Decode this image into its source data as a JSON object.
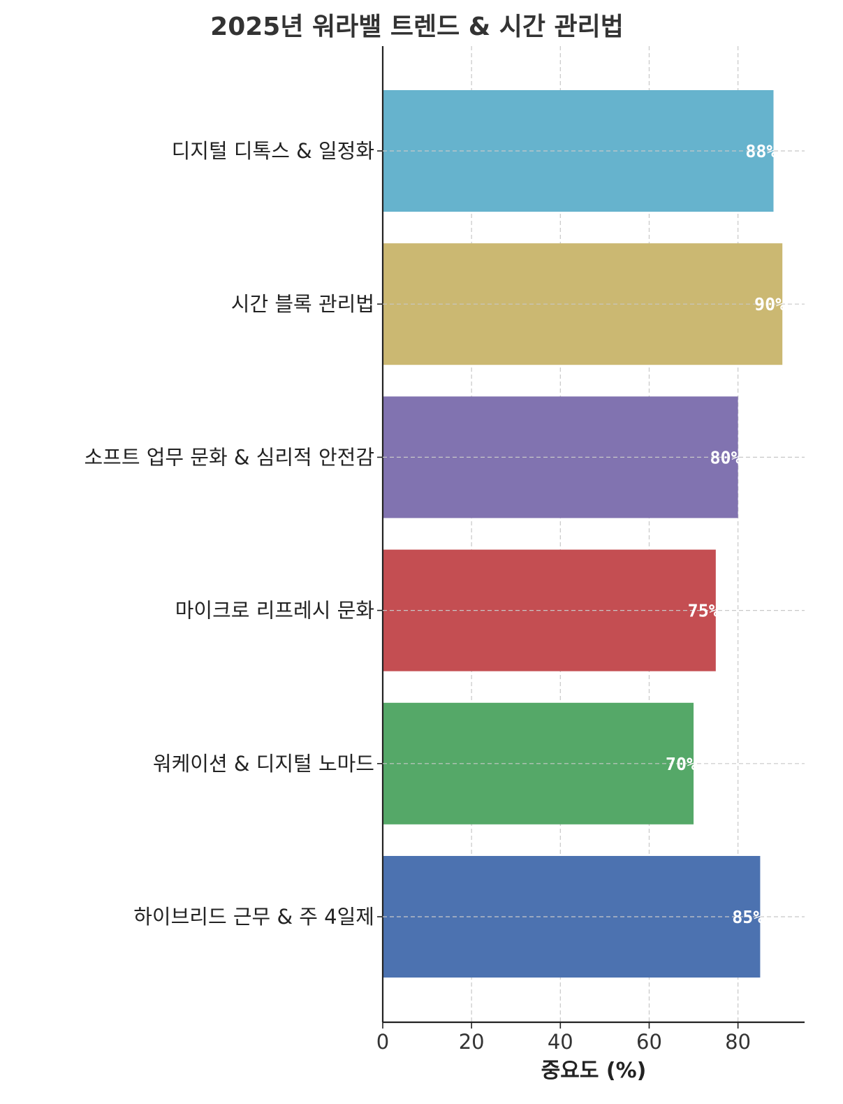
{
  "chart_data": {
    "type": "bar",
    "orientation": "horizontal",
    "title": "2025년 워라밸 트렌드 & 시간 관리법",
    "xlabel": "중요도 (%)",
    "ylabel": "",
    "categories": [
      "디지털 디톡스 & 일정화",
      "시간 블록 관리법",
      "소프트 업무 문화 & 심리적 안전감",
      "마이크로 리프레시 문화",
      "워케이션 & 디지털 노마드",
      "하이브리드 근무 & 주 4일제"
    ],
    "values": [
      88,
      90,
      80,
      75,
      70,
      85
    ],
    "value_labels": [
      "88%",
      "90%",
      "80%",
      "75%",
      "70%",
      "85%"
    ],
    "colors": [
      "#66b3cd",
      "#cbb872",
      "#8173b0",
      "#c44e52",
      "#55a868",
      "#4c72b0"
    ],
    "xlim": [
      0,
      95
    ],
    "xticks": [
      0,
      20,
      40,
      60,
      80
    ],
    "xtick_labels": [
      "0",
      "20",
      "40",
      "60",
      "80"
    ],
    "grid": true,
    "grid_style": "dashed",
    "legend": "none"
  }
}
